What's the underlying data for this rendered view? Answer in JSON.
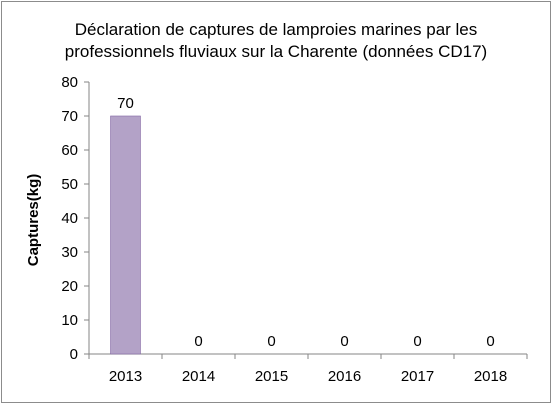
{
  "chart_data": {
    "type": "bar",
    "title_lines": [
      "Déclaration de captures de lamproies marines par les",
      "professionnels fluviaux sur la Charente (données CD17)"
    ],
    "xlabel": "",
    "ylabel": "Captures(kg)",
    "categories": [
      "2013",
      "2014",
      "2015",
      "2016",
      "2017",
      "2018"
    ],
    "values": [
      70,
      0,
      0,
      0,
      0,
      0
    ],
    "data_labels": [
      "70",
      "0",
      "0",
      "0",
      "0",
      "0"
    ],
    "ylim": [
      0,
      80
    ],
    "yticks": [
      0,
      10,
      20,
      30,
      40,
      50,
      60,
      70,
      80
    ],
    "grid": false,
    "legend": "none",
    "bar_color": "#b3a2c7",
    "bar_border_color": "#8064a2"
  }
}
